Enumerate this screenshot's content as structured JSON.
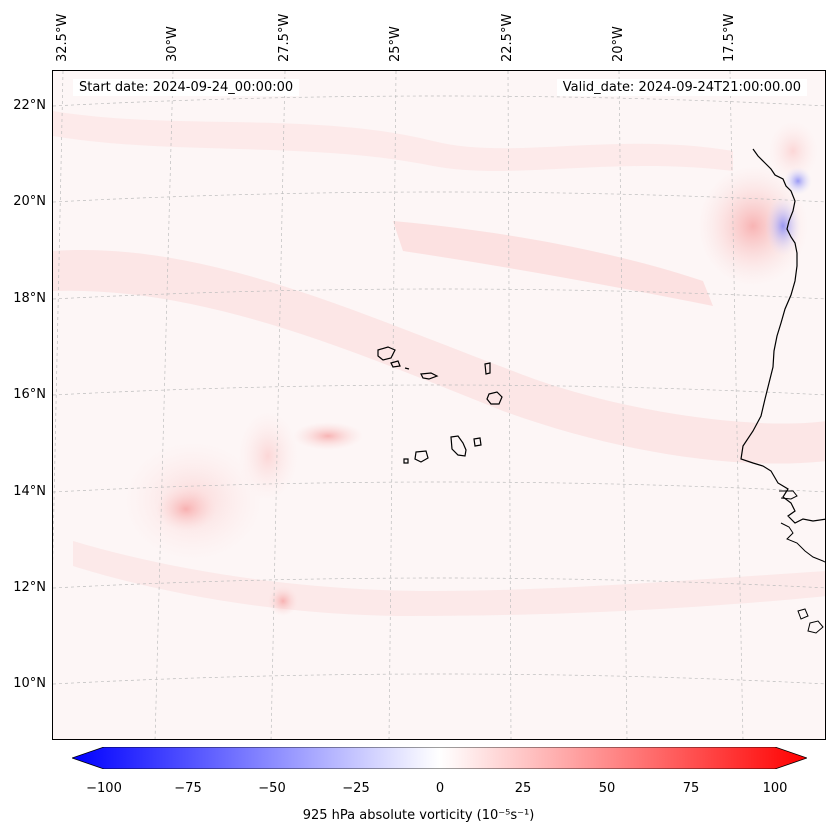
{
  "map": {
    "longitude_labels": [
      "32.5°W",
      "30°W",
      "27.5°W",
      "25°W",
      "22.5°W",
      "20°W",
      "17.5°W"
    ],
    "latitude_labels": [
      "22°N",
      "20°N",
      "18°N",
      "16°N",
      "14°N",
      "12°N",
      "10°N"
    ],
    "start_date": "Start date: 2024-09-24_00:00:00",
    "valid_date": "Valid_date: 2024-09-24T21:00:00.00",
    "colors": {
      "background_field": "#fdf6f6",
      "gridline": "#bdbdbd",
      "coastline": "#000000",
      "negative_max": "#0000ff",
      "positive_max": "#ff0000"
    }
  },
  "colorbar": {
    "label": "925 hPa absolute vorticity (10⁻⁵s⁻¹)",
    "ticks": [
      "−100",
      "−75",
      "−50",
      "−25",
      "0",
      "25",
      "50",
      "75",
      "100"
    ],
    "range": [
      -100,
      100
    ]
  }
}
